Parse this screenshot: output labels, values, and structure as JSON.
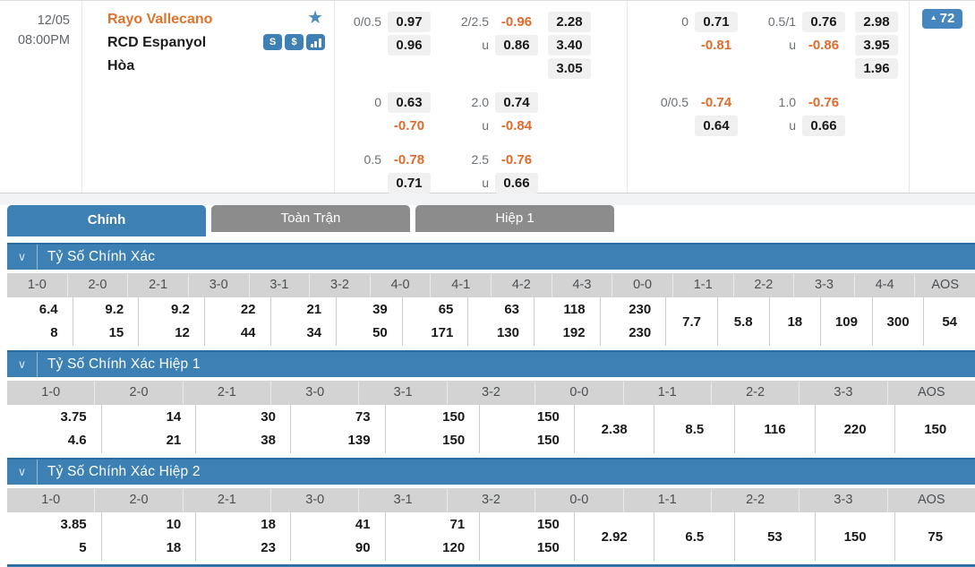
{
  "colors": {
    "accent_blue": "#3d80b3",
    "dark_blue_edge": "#2b6b9e",
    "badge_blue": "#4586bf",
    "tab_gray": "#8c8c8c",
    "orange": "#e06a2b",
    "team_orange": "#e0732c",
    "odds_box_bg": "#f0f0f0",
    "column_header_bg": "#d3d3d3"
  },
  "icons": {
    "favorite": "★",
    "trend_up": "▲",
    "chevron_down": "∨",
    "s_badge": "S",
    "dollar": "$"
  },
  "labels": {
    "under": "u"
  },
  "match": {
    "date": "12/05",
    "time": "08:00PM",
    "home": "Rayo Vallecano",
    "away": "RCD Espanyol",
    "draw": "Hòa",
    "more_count": "72",
    "odds_left": {
      "groups": [
        {
          "hdp_label": "0/0.5",
          "hdp": [
            "0.97",
            "0.96"
          ],
          "ou_label": "2/2.5",
          "ou": [
            "-0.96",
            "0.86"
          ],
          "x12": [
            "2.28",
            "3.40",
            "3.05"
          ]
        },
        {
          "hdp_label": "0",
          "hdp": [
            "0.63",
            "-0.70"
          ],
          "ou_label": "2.0",
          "ou": [
            "0.74",
            "-0.84"
          ]
        },
        {
          "hdp_label": "0.5",
          "hdp": [
            "-0.78",
            "0.71"
          ],
          "ou_label": "2.5",
          "ou": [
            "-0.76",
            "0.66"
          ]
        }
      ]
    },
    "odds_right": {
      "groups": [
        {
          "hdp_label": "0",
          "hdp": [
            "0.71",
            "-0.81"
          ],
          "ou_label": "0.5/1",
          "ou": [
            "0.76",
            "-0.86"
          ],
          "x12": [
            "2.98",
            "3.95",
            "1.96"
          ]
        },
        {
          "hdp_label": "0/0.5",
          "hdp": [
            "-0.74",
            "0.64"
          ],
          "ou_label": "1.0",
          "ou": [
            "-0.76",
            "0.66"
          ]
        }
      ]
    }
  },
  "tabs": [
    {
      "id": "chinh",
      "label": "Chính",
      "active": true
    },
    {
      "id": "toan-tran",
      "label": "Toàn Trận",
      "active": false
    },
    {
      "id": "hiep-1",
      "label": "Hiệp 1",
      "active": false
    }
  ],
  "sections": [
    {
      "title": "Tỷ Số Chính Xác",
      "columns": [
        "1-0",
        "2-0",
        "2-1",
        "3-0",
        "3-1",
        "3-2",
        "4-0",
        "4-1",
        "4-2",
        "4-3",
        "0-0",
        "1-1",
        "2-2",
        "3-3",
        "4-4",
        "AOS"
      ],
      "cells": [
        [
          "6.4",
          "8"
        ],
        [
          "9.2",
          "15"
        ],
        [
          "9.2",
          "12"
        ],
        [
          "22",
          "44"
        ],
        [
          "21",
          "34"
        ],
        [
          "39",
          "50"
        ],
        [
          "65",
          "171"
        ],
        [
          "63",
          "130"
        ],
        [
          "118",
          "192"
        ],
        [
          "230",
          "230"
        ],
        [
          "7.7"
        ],
        [
          "5.8"
        ],
        [
          "18"
        ],
        [
          "109"
        ],
        [
          "300"
        ],
        [
          "54"
        ]
      ]
    },
    {
      "title": "Tỷ Số Chính Xác Hiệp 1",
      "columns": [
        "1-0",
        "2-0",
        "2-1",
        "3-0",
        "3-1",
        "3-2",
        "0-0",
        "1-1",
        "2-2",
        "3-3",
        "AOS"
      ],
      "cells": [
        [
          "3.75",
          "4.6"
        ],
        [
          "14",
          "21"
        ],
        [
          "30",
          "38"
        ],
        [
          "73",
          "139"
        ],
        [
          "150",
          "150"
        ],
        [
          "150",
          "150"
        ],
        [
          "2.38"
        ],
        [
          "8.5"
        ],
        [
          "116"
        ],
        [
          "220"
        ],
        [
          "150"
        ]
      ]
    },
    {
      "title": "Tỷ Số Chính Xác Hiệp 2",
      "columns": [
        "1-0",
        "2-0",
        "2-1",
        "3-0",
        "3-1",
        "3-2",
        "0-0",
        "1-1",
        "2-2",
        "3-3",
        "AOS"
      ],
      "cells": [
        [
          "3.85",
          "5"
        ],
        [
          "10",
          "18"
        ],
        [
          "18",
          "23"
        ],
        [
          "41",
          "90"
        ],
        [
          "71",
          "120"
        ],
        [
          "150",
          "150"
        ],
        [
          "2.92"
        ],
        [
          "6.5"
        ],
        [
          "53"
        ],
        [
          "150"
        ],
        [
          "75"
        ]
      ]
    }
  ]
}
